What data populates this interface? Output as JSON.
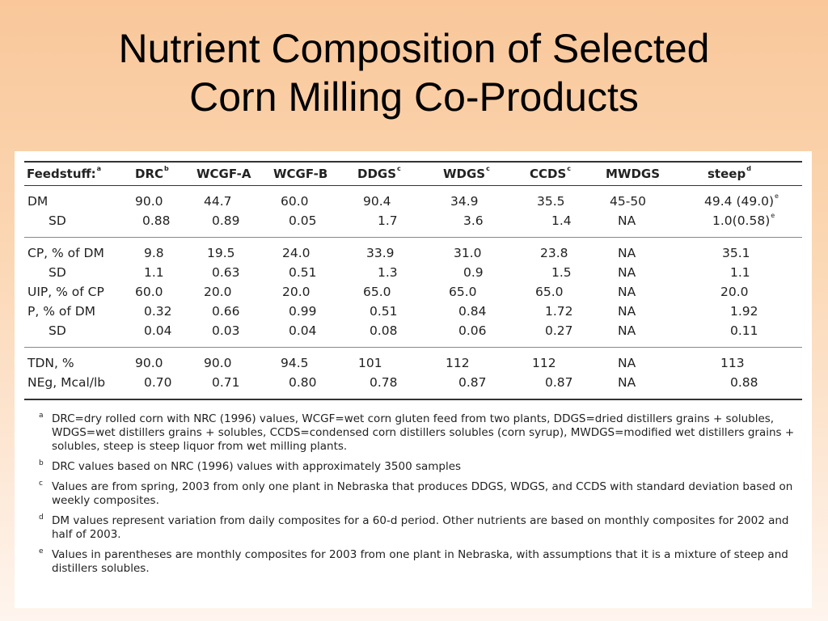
{
  "title": {
    "line1": "Nutrient Composition of Selected",
    "line2": "Corn Milling Co-Products"
  },
  "table": {
    "headers": [
      {
        "text": "Feedstuff:",
        "sup": "a"
      },
      {
        "text": "DRC",
        "sup": "b"
      },
      {
        "text": "WCGF-A",
        "sup": ""
      },
      {
        "text": "WCGF-B",
        "sup": ""
      },
      {
        "text": "DDGS",
        "sup": "c"
      },
      {
        "text": "WDGS",
        "sup": "c"
      },
      {
        "text": "CCDS",
        "sup": "c"
      },
      {
        "text": "MWDGS",
        "sup": ""
      },
      {
        "text": "steep",
        "sup": "d"
      }
    ],
    "rows": {
      "dm": {
        "label": "DM",
        "values": [
          "90.0",
          "44.7",
          "60.0",
          "90.4",
          "34.9",
          "35.5",
          "45-50",
          "49.4 (49.0)"
        ],
        "steep_sup": "e"
      },
      "dm_sd": {
        "label": "SD",
        "values": [
          "0.88",
          "0.89",
          "0.05",
          "1.7",
          "3.6",
          "1.4",
          "NA",
          "1.0(0.58)"
        ],
        "steep_sup": "e"
      },
      "cp": {
        "label": "CP, % of DM",
        "values": [
          "9.8",
          "19.5",
          "24.0",
          "33.9",
          "31.0",
          "23.8",
          "NA",
          "35.1"
        ]
      },
      "cp_sd": {
        "label": "SD",
        "values": [
          "1.1",
          "0.63",
          "0.51",
          "1.3",
          "0.9",
          "1.5",
          "NA",
          "1.1"
        ]
      },
      "uip": {
        "label": "UIP, % of CP",
        "values": [
          "60.0",
          "20.0",
          "20.0",
          "65.0",
          "65.0",
          "65.0",
          "NA",
          "20.0"
        ]
      },
      "p": {
        "label": "P, % of DM",
        "values": [
          "0.32",
          "0.66",
          "0.99",
          "0.51",
          "0.84",
          "1.72",
          "NA",
          "1.92"
        ]
      },
      "p_sd": {
        "label": "SD",
        "values": [
          "0.04",
          "0.03",
          "0.04",
          "0.08",
          "0.06",
          "0.27",
          "NA",
          "0.11"
        ]
      },
      "tdn": {
        "label": "TDN, %",
        "values": [
          "90.0",
          "90.0",
          "94.5",
          "101",
          "112",
          "112",
          "NA",
          "113"
        ]
      },
      "neg": {
        "label": "NEg, Mcal/lb",
        "values": [
          "0.70",
          "0.71",
          "0.80",
          "0.78",
          "0.87",
          "0.87",
          "NA",
          "0.88"
        ]
      }
    }
  },
  "footnotes": [
    {
      "mark": "a",
      "text": "DRC=dry rolled corn with NRC (1996) values, WCGF=wet corn gluten feed from two plants, DDGS=dried distillers grains + solubles, WDGS=wet distillers grains + solubles, CCDS=condensed corn distillers solubles (corn syrup), MWDGS=modified wet distillers grains + solubles, steep is steep liquor from wet milling plants."
    },
    {
      "mark": "b",
      "text": "DRC values based on NRC (1996) values with approximately 3500 samples"
    },
    {
      "mark": "c",
      "text": "Values are from spring, 2003 from only one plant in Nebraska that produces DDGS, WDGS, and CCDS with standard deviation based on weekly composites."
    },
    {
      "mark": "d",
      "text": "DM values represent variation from daily composites for a 60-d period. Other nutrients are based on monthly composites for 2002 and half of 2003."
    },
    {
      "mark": "e",
      "text": "Values in parentheses are monthly composites for 2003 from one plant in Nebraska, with assumptions that it is a mixture of steep and distillers solubles."
    }
  ]
}
